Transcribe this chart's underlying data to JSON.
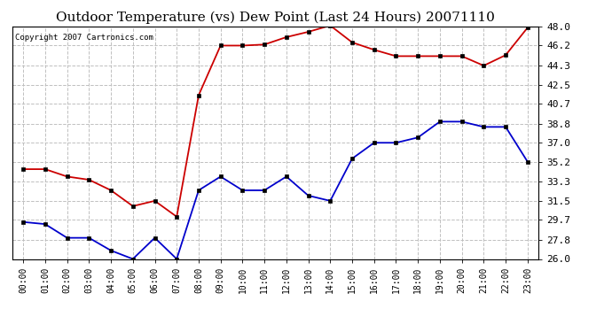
{
  "title": "Outdoor Temperature (vs) Dew Point (Last 24 Hours) 20071110",
  "copyright_text": "Copyright 2007 Cartronics.com",
  "x_labels": [
    "00:00",
    "01:00",
    "02:00",
    "03:00",
    "04:00",
    "05:00",
    "06:00",
    "07:00",
    "08:00",
    "09:00",
    "10:00",
    "11:00",
    "12:00",
    "13:00",
    "14:00",
    "15:00",
    "16:00",
    "17:00",
    "18:00",
    "19:00",
    "20:00",
    "21:00",
    "22:00",
    "23:00"
  ],
  "temp_data": [
    34.5,
    34.5,
    33.8,
    33.5,
    32.5,
    31.0,
    31.5,
    30.0,
    41.5,
    46.2,
    46.2,
    46.3,
    47.0,
    47.5,
    48.1,
    46.5,
    45.8,
    45.2,
    45.2,
    45.2,
    45.2,
    44.3,
    45.3,
    47.9
  ],
  "dew_data": [
    29.5,
    29.3,
    28.0,
    28.0,
    26.8,
    26.0,
    28.0,
    26.0,
    32.5,
    33.8,
    32.5,
    32.5,
    33.8,
    32.0,
    31.5,
    35.5,
    37.0,
    37.0,
    37.5,
    39.0,
    39.0,
    38.5,
    38.5,
    35.2
  ],
  "ylim": [
    26.0,
    48.0
  ],
  "yticks": [
    26.0,
    27.8,
    29.7,
    31.5,
    33.3,
    35.2,
    37.0,
    38.8,
    40.7,
    42.5,
    44.3,
    46.2,
    48.0
  ],
  "temp_color": "#cc0000",
  "dew_color": "#0000cc",
  "grid_color": "#c0c0c0",
  "bg_color": "#ffffff",
  "title_fontsize": 11,
  "marker": "s",
  "marker_size": 3
}
